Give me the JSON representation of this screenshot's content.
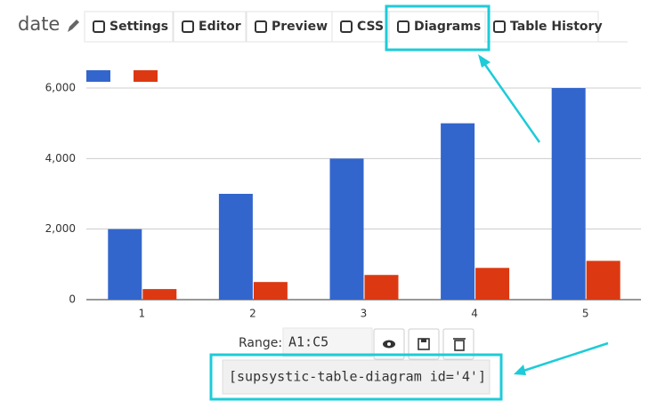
{
  "header": {
    "title": "date"
  },
  "tabs": [
    "Settings",
    "Editor",
    "Preview",
    "CSS",
    "Diagrams",
    "Table History"
  ],
  "active_tab": 4,
  "range": {
    "label": "Range:",
    "value": "A1:C5"
  },
  "shortcode": "[supsystic-table-diagram id='4']",
  "chart_data": {
    "type": "bar",
    "categories": [
      "1",
      "2",
      "3",
      "4",
      "5"
    ],
    "series": [
      {
        "color": "#3366cc",
        "values": [
          2000,
          3000,
          4000,
          5000,
          6000
        ]
      },
      {
        "color": "#dc3912",
        "values": [
          300,
          500,
          700,
          900,
          1100
        ]
      }
    ],
    "ylim": [
      0,
      6000
    ],
    "yticks": [
      0,
      {
        "value": 2000,
        "label": "2,000"
      },
      {
        "value": 4000,
        "label": "4,000"
      },
      {
        "value": 6000,
        "label": "6,000"
      }
    ],
    "grid": true,
    "legend": "top-left"
  }
}
